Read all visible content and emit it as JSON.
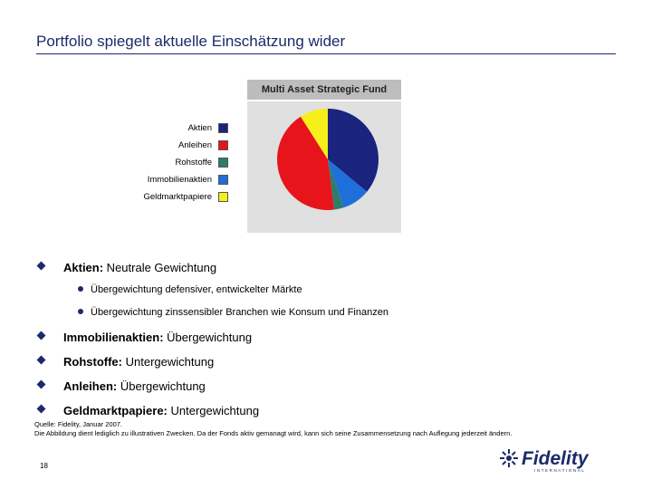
{
  "slide": {
    "title": "Portfolio spiegelt aktuelle Einschätzung wider",
    "page_number": "18"
  },
  "chart_data": {
    "type": "pie",
    "title": "Multi Asset Strategic Fund",
    "legend_position": "left",
    "slices": [
      {
        "label": "Aktien",
        "value": 36,
        "color": "#1a237e"
      },
      {
        "label": "Anleihen",
        "value": 43,
        "color": "#e8141b"
      },
      {
        "label": "Rohstoffe",
        "value": 3,
        "color": "#2e7d6b"
      },
      {
        "label": "Immobilienaktien",
        "value": 9,
        "color": "#1e6fd9"
      },
      {
        "label": "Geldmarktpapiere",
        "value": 9,
        "color": "#f7ef1a"
      }
    ],
    "draw_order": [
      0,
      3,
      2,
      1,
      4
    ]
  },
  "bullets": [
    {
      "bold": "Aktien:",
      "rest": " Neutrale Gewichtung",
      "sub": [
        "Übergewichtung defensiver, entwickelter Märkte",
        "Übergewichtung zinssensibler Branchen wie Konsum und Finanzen"
      ]
    },
    {
      "bold": "Immobilienaktien:",
      "rest": " Übergewichtung",
      "sub": []
    },
    {
      "bold": "Rohstoffe:",
      "rest": " Untergewichtung",
      "sub": []
    },
    {
      "bold": "Anleihen:",
      "rest": " Übergewichtung",
      "sub": []
    },
    {
      "bold": "Geldmarktpapiere:",
      "rest": " Untergewichtung",
      "sub": []
    }
  ],
  "footer": {
    "source": "Quelle: Fidelity, Januar 2007.",
    "disclaimer": "Die Abbildung dient lediglich zu illustrativen Zwecken. Da der Fonds aktiv gemanagt wird, kann sich seine Zusammensetzung nach Auflegung jederzeit ändern."
  },
  "logo": {
    "text": "Fidelity",
    "subtext": "INTERNATIONAL",
    "color": "#1c2a6b"
  }
}
